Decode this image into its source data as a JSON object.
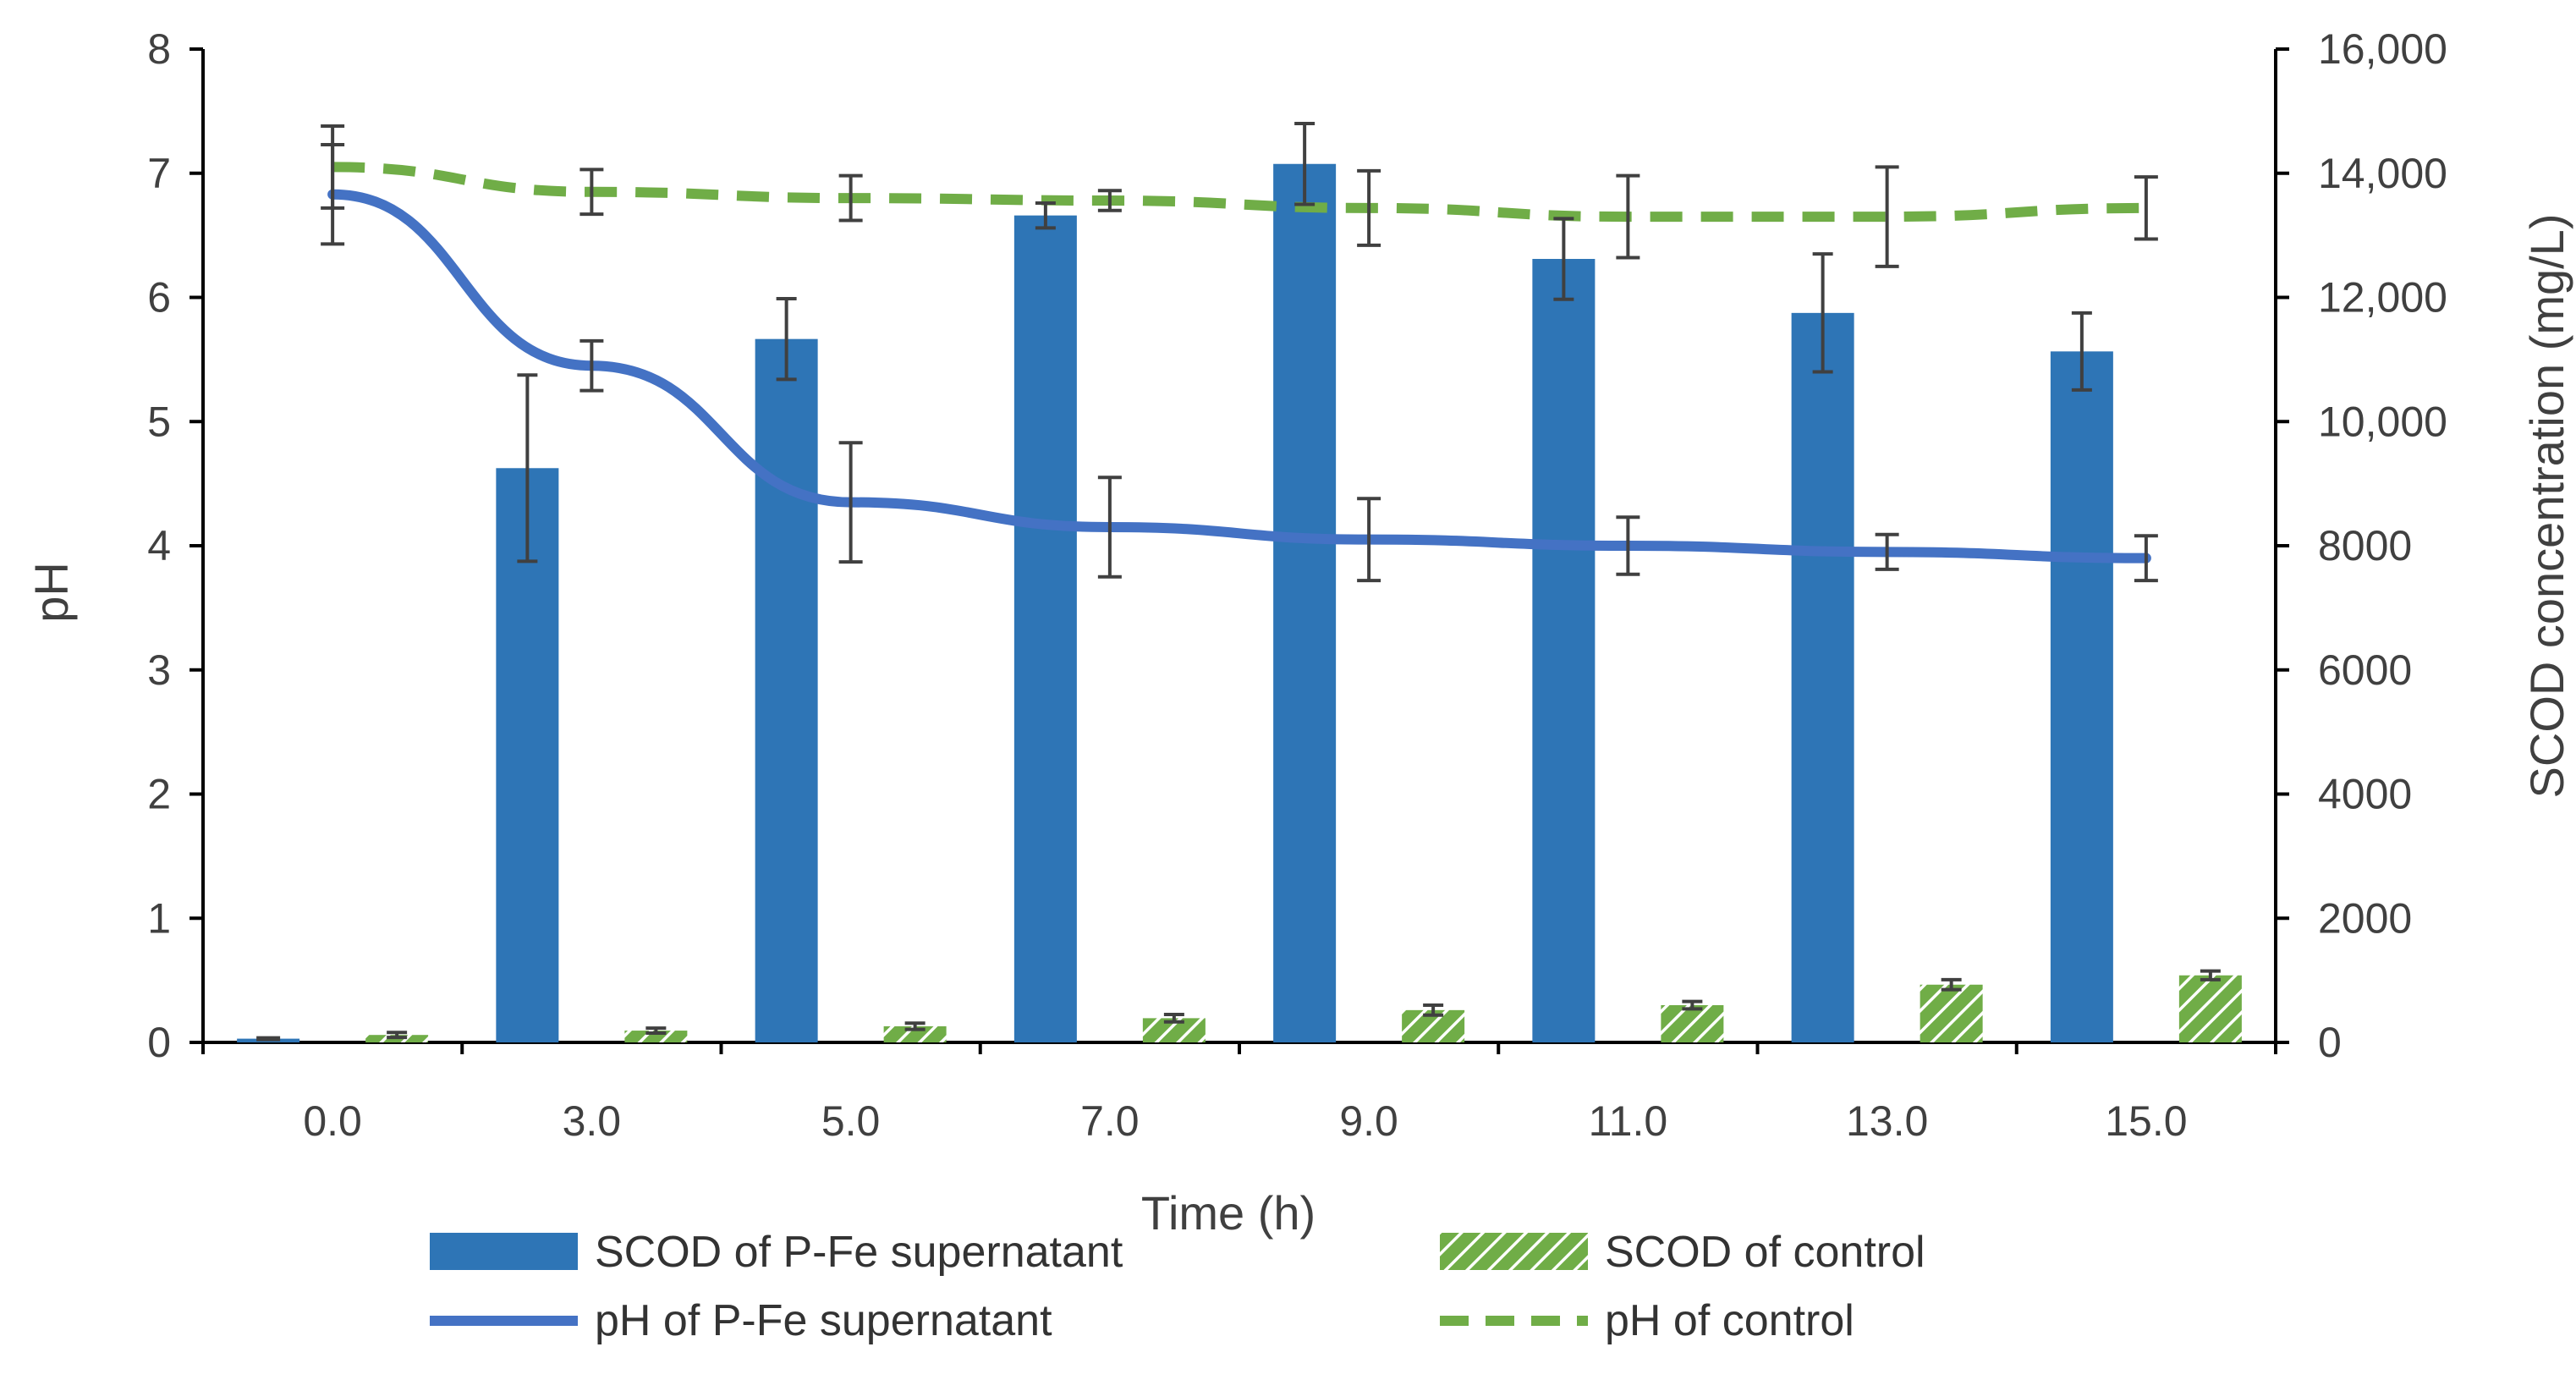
{
  "chart_data": {
    "type": "bar",
    "categories": [
      "0.0",
      "3.0",
      "5.0",
      "7.0",
      "9.0",
      "11.0",
      "13.0",
      "15.0"
    ],
    "xlabel": "Time (h)",
    "ylabel_left": "pH",
    "ylabel_right": "SCOD concentration (mg/L)",
    "ylim_left": [
      0,
      8
    ],
    "ylim_right": [
      0,
      16000
    ],
    "yticks_left": [
      "0",
      "1",
      "2",
      "3",
      "4",
      "5",
      "6",
      "7",
      "8"
    ],
    "yticks_right": [
      "0",
      "2000",
      "4000",
      "6000",
      "8000",
      "10,000",
      "12,000",
      "14,000",
      "16,000"
    ],
    "bar_series": [
      {
        "name": "SCOD of P-Fe supernatant",
        "axis": "right",
        "color": "#2e75b6",
        "values": [
          60,
          9250,
          11330,
          13320,
          14150,
          12620,
          11750,
          11130
        ],
        "errors": [
          0,
          1500,
          650,
          200,
          650,
          650,
          950,
          620
        ]
      },
      {
        "name": "SCOD of control",
        "axis": "right",
        "color": "#70ad47",
        "pattern": "hatched",
        "values": [
          120,
          190,
          260,
          390,
          520,
          600,
          930,
          1080
        ],
        "errors": [
          40,
          40,
          50,
          60,
          80,
          60,
          80,
          70
        ]
      }
    ],
    "line_series": [
      {
        "name": "pH of P-Fe supernatant",
        "axis": "left",
        "color": "#4472c4",
        "style": "solid",
        "values": [
          6.83,
          5.45,
          4.35,
          4.15,
          4.05,
          4.0,
          3.95,
          3.9
        ],
        "errors": [
          0.4,
          0.2,
          0.48,
          0.4,
          0.33,
          0.23,
          0.14,
          0.18
        ]
      },
      {
        "name": "pH of control",
        "axis": "left",
        "color": "#70ad47",
        "style": "dashed",
        "values": [
          7.05,
          6.85,
          6.8,
          6.78,
          6.72,
          6.65,
          6.65,
          6.72
        ],
        "errors": [
          0.33,
          0.18,
          0.18,
          0.08,
          0.3,
          0.33,
          0.4,
          0.25
        ]
      }
    ],
    "legend": [
      {
        "label": "SCOD of P-Fe supernatant",
        "kind": "bar",
        "series": "SCOD of P-Fe supernatant"
      },
      {
        "label": "SCOD of control",
        "kind": "hatched-bar",
        "series": "SCOD of control"
      },
      {
        "label": "pH of P-Fe supernatant",
        "kind": "solid-line",
        "series": "pH of P-Fe supernatant"
      },
      {
        "label": "pH of control",
        "kind": "dashed-line",
        "series": "pH of control"
      }
    ]
  }
}
